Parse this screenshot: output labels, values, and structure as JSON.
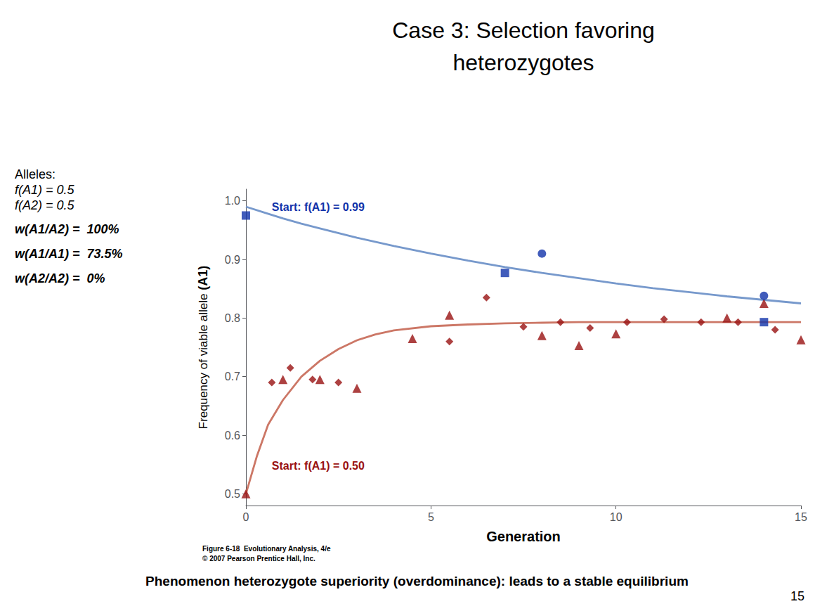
{
  "chart_data": {
    "type": "line",
    "title": "Case 3: Selection favoring\nheterozygotes",
    "xlabel": "Generation",
    "ylabel": "Frequency of viable allele",
    "ylabel_note": "(A1)",
    "xlim": [
      0,
      15
    ],
    "ylim": [
      0.48,
      1.02
    ],
    "xticks": [
      0,
      5,
      10,
      15
    ],
    "yticks": [
      0.5,
      0.6,
      0.7,
      0.8,
      0.9,
      {
        "value": 1.0,
        "label": "1.0"
      }
    ],
    "grid": false,
    "series": [
      {
        "type": "line",
        "color": "#7799cc",
        "x": [
          0,
          0.5,
          1,
          1.5,
          2,
          3,
          4,
          5,
          6,
          7,
          8,
          9,
          10,
          11,
          12,
          13,
          14,
          15
        ],
        "values": [
          0.99,
          0.98,
          0.97,
          0.961,
          0.953,
          0.937,
          0.923,
          0.91,
          0.898,
          0.887,
          0.877,
          0.868,
          0.859,
          0.851,
          0.844,
          0.837,
          0.831,
          0.825
        ]
      },
      {
        "type": "line",
        "color": "#cc7766",
        "x": [
          0,
          0.3,
          0.6,
          1.0,
          1.5,
          2,
          2.5,
          3,
          3.5,
          4,
          5,
          6,
          7,
          8,
          9,
          10,
          11,
          12,
          13,
          14,
          15
        ],
        "values": [
          0.5,
          0.565,
          0.618,
          0.66,
          0.7,
          0.727,
          0.747,
          0.762,
          0.772,
          0.779,
          0.786,
          0.789,
          0.791,
          0.792,
          0.793,
          0.793,
          0.793,
          0.793,
          0.793,
          0.793,
          0.793
        ]
      },
      {
        "type": "scatter",
        "marker": "diamond",
        "color": "#991111",
        "x": [
          0.7,
          1.2,
          1.8,
          2.5,
          5.5,
          6.5,
          7.5,
          8.5,
          9.3,
          10.3,
          11.3,
          12.3,
          13.3,
          14.3
        ],
        "values": [
          0.69,
          0.715,
          0.695,
          0.69,
          0.76,
          0.835,
          0.785,
          0.793,
          0.783,
          0.793,
          0.798,
          0.793,
          0.793,
          0.78
        ]
      },
      {
        "type": "scatter",
        "marker": "triangle",
        "color": "#991111",
        "x": [
          0,
          1.0,
          2.0,
          3.0,
          4.5,
          5.5,
          8.0,
          9.0,
          10.0,
          13.0,
          14.0,
          15.0
        ],
        "values": [
          0.5,
          0.695,
          0.695,
          0.68,
          0.765,
          0.805,
          0.77,
          0.753,
          0.773,
          0.8,
          0.825,
          0.763
        ]
      },
      {
        "type": "scatter",
        "marker": "square",
        "color": "#1133aa",
        "x": [
          0,
          7,
          14
        ],
        "values": [
          0.975,
          0.877,
          0.793
        ]
      },
      {
        "type": "scatter",
        "marker": "circle",
        "color": "#1133aa",
        "x": [
          8,
          14
        ],
        "values": [
          0.91,
          0.838
        ]
      }
    ],
    "annotations": [
      {
        "text": "Start: f(A1) = 0.99",
        "color": "#1133aa",
        "x": 0.7,
        "y": 0.99
      },
      {
        "text": "Start: f(A1) = 0.50",
        "color": "#991111",
        "x": 0.7,
        "y": 0.548
      }
    ],
    "alleles": [
      "Alleles:",
      "f(A1) = 0.5",
      "f(A2) = 0.5"
    ],
    "fitness": [
      "w(A1/A2) =  100%",
      "w(A1/A1) =  73.5%",
      "w(A2/A2) =  0%"
    ],
    "footer": "Phenomenon heterozygote superiority (overdominance): leads to a stable equilibrium",
    "caption": [
      "Figure 6-18  Evolutionary Analysis, 4/e",
      "© 2007 Pearson Prentice Hall, Inc."
    ],
    "page_number": "15"
  }
}
